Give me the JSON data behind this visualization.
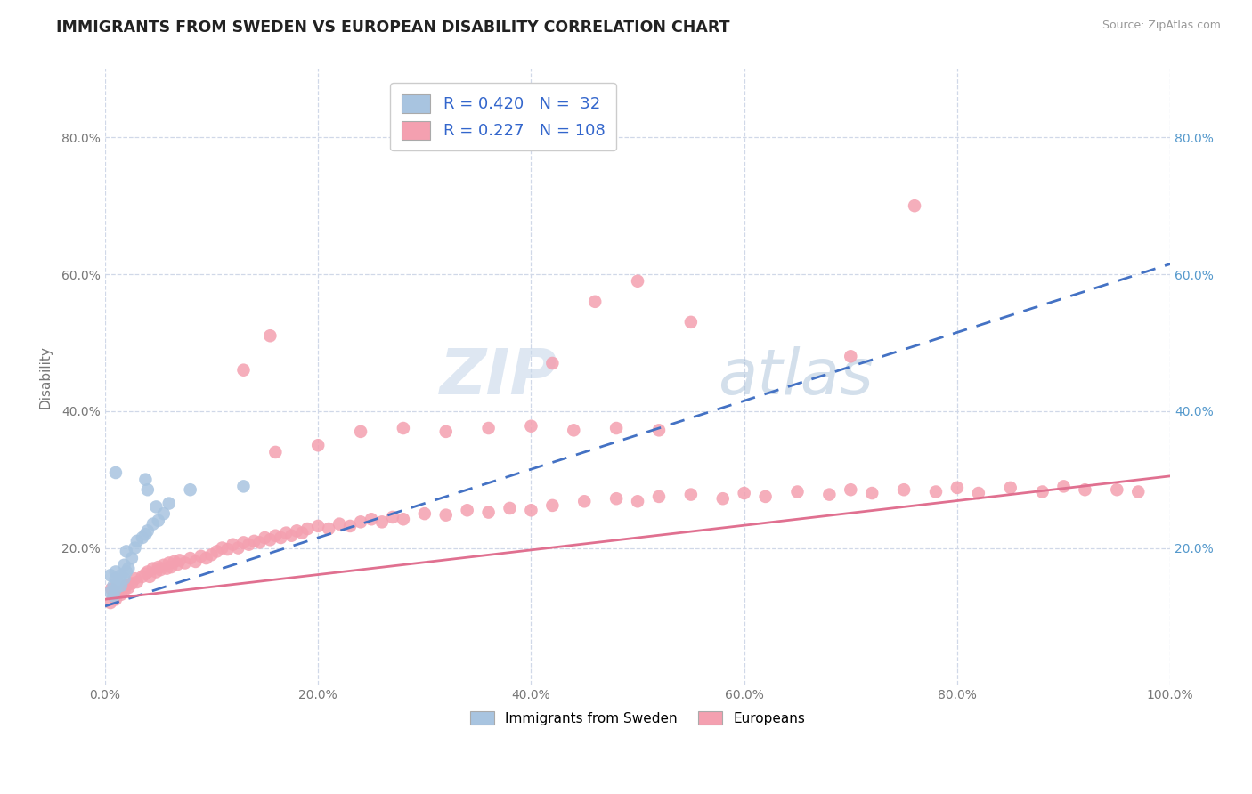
{
  "title": "IMMIGRANTS FROM SWEDEN VS EUROPEAN DISABILITY CORRELATION CHART",
  "source": "Source: ZipAtlas.com",
  "ylabel": "Disability",
  "xlim": [
    0.0,
    1.0
  ],
  "ylim": [
    0.0,
    0.9
  ],
  "sweden_R": 0.42,
  "sweden_N": 32,
  "europe_R": 0.227,
  "europe_N": 108,
  "sweden_color": "#a8c4e0",
  "europe_color": "#f4a0b0",
  "sweden_line_color": "#4472c4",
  "europe_line_color": "#e07090",
  "background_color": "#ffffff",
  "grid_color": "#d0d8e8",
  "watermark_zip": "ZIP",
  "watermark_atlas": "atlas",
  "sweden_line_x": [
    0.0,
    1.0
  ],
  "sweden_line_y": [
    0.115,
    0.615
  ],
  "europe_line_x": [
    0.0,
    1.0
  ],
  "europe_line_y": [
    0.125,
    0.305
  ],
  "sweden_points": [
    [
      0.005,
      0.135
    ],
    [
      0.008,
      0.145
    ],
    [
      0.01,
      0.14
    ],
    [
      0.012,
      0.15
    ],
    [
      0.005,
      0.16
    ],
    [
      0.008,
      0.13
    ],
    [
      0.01,
      0.155
    ],
    [
      0.012,
      0.148
    ],
    [
      0.015,
      0.145
    ],
    [
      0.018,
      0.155
    ],
    [
      0.01,
      0.165
    ],
    [
      0.015,
      0.16
    ],
    [
      0.02,
      0.165
    ],
    [
      0.018,
      0.175
    ],
    [
      0.022,
      0.17
    ],
    [
      0.025,
      0.185
    ],
    [
      0.02,
      0.195
    ],
    [
      0.028,
      0.2
    ],
    [
      0.03,
      0.21
    ],
    [
      0.035,
      0.215
    ],
    [
      0.038,
      0.22
    ],
    [
      0.04,
      0.225
    ],
    [
      0.045,
      0.235
    ],
    [
      0.05,
      0.24
    ],
    [
      0.055,
      0.25
    ],
    [
      0.048,
      0.26
    ],
    [
      0.038,
      0.3
    ],
    [
      0.06,
      0.265
    ],
    [
      0.01,
      0.31
    ],
    [
      0.04,
      0.285
    ],
    [
      0.08,
      0.285
    ],
    [
      0.13,
      0.29
    ]
  ],
  "europe_points": [
    [
      0.005,
      0.12
    ],
    [
      0.008,
      0.13
    ],
    [
      0.01,
      0.125
    ],
    [
      0.012,
      0.135
    ],
    [
      0.006,
      0.14
    ],
    [
      0.009,
      0.128
    ],
    [
      0.015,
      0.132
    ],
    [
      0.018,
      0.138
    ],
    [
      0.02,
      0.145
    ],
    [
      0.022,
      0.142
    ],
    [
      0.025,
      0.148
    ],
    [
      0.028,
      0.155
    ],
    [
      0.03,
      0.15
    ],
    [
      0.035,
      0.158
    ],
    [
      0.038,
      0.162
    ],
    [
      0.04,
      0.165
    ],
    [
      0.042,
      0.158
    ],
    [
      0.045,
      0.17
    ],
    [
      0.048,
      0.165
    ],
    [
      0.05,
      0.172
    ],
    [
      0.052,
      0.168
    ],
    [
      0.055,
      0.175
    ],
    [
      0.058,
      0.17
    ],
    [
      0.06,
      0.178
    ],
    [
      0.062,
      0.172
    ],
    [
      0.065,
      0.18
    ],
    [
      0.068,
      0.176
    ],
    [
      0.07,
      0.182
    ],
    [
      0.075,
      0.178
    ],
    [
      0.08,
      0.185
    ],
    [
      0.085,
      0.18
    ],
    [
      0.09,
      0.188
    ],
    [
      0.095,
      0.185
    ],
    [
      0.1,
      0.19
    ],
    [
      0.105,
      0.195
    ],
    [
      0.11,
      0.2
    ],
    [
      0.115,
      0.198
    ],
    [
      0.12,
      0.205
    ],
    [
      0.125,
      0.2
    ],
    [
      0.13,
      0.208
    ],
    [
      0.135,
      0.205
    ],
    [
      0.14,
      0.21
    ],
    [
      0.145,
      0.208
    ],
    [
      0.15,
      0.215
    ],
    [
      0.155,
      0.212
    ],
    [
      0.16,
      0.218
    ],
    [
      0.165,
      0.215
    ],
    [
      0.17,
      0.222
    ],
    [
      0.175,
      0.218
    ],
    [
      0.18,
      0.225
    ],
    [
      0.185,
      0.222
    ],
    [
      0.19,
      0.228
    ],
    [
      0.2,
      0.232
    ],
    [
      0.21,
      0.228
    ],
    [
      0.22,
      0.235
    ],
    [
      0.23,
      0.232
    ],
    [
      0.24,
      0.238
    ],
    [
      0.25,
      0.242
    ],
    [
      0.26,
      0.238
    ],
    [
      0.27,
      0.245
    ],
    [
      0.28,
      0.242
    ],
    [
      0.3,
      0.25
    ],
    [
      0.32,
      0.248
    ],
    [
      0.34,
      0.255
    ],
    [
      0.36,
      0.252
    ],
    [
      0.38,
      0.258
    ],
    [
      0.4,
      0.255
    ],
    [
      0.42,
      0.262
    ],
    [
      0.45,
      0.268
    ],
    [
      0.48,
      0.272
    ],
    [
      0.5,
      0.268
    ],
    [
      0.52,
      0.275
    ],
    [
      0.55,
      0.278
    ],
    [
      0.58,
      0.272
    ],
    [
      0.6,
      0.28
    ],
    [
      0.62,
      0.275
    ],
    [
      0.65,
      0.282
    ],
    [
      0.68,
      0.278
    ],
    [
      0.7,
      0.285
    ],
    [
      0.72,
      0.28
    ],
    [
      0.75,
      0.285
    ],
    [
      0.78,
      0.282
    ],
    [
      0.8,
      0.288
    ],
    [
      0.82,
      0.28
    ],
    [
      0.85,
      0.288
    ],
    [
      0.88,
      0.282
    ],
    [
      0.9,
      0.29
    ],
    [
      0.92,
      0.285
    ],
    [
      0.95,
      0.285
    ],
    [
      0.97,
      0.282
    ],
    [
      0.16,
      0.34
    ],
    [
      0.2,
      0.35
    ],
    [
      0.24,
      0.37
    ],
    [
      0.28,
      0.375
    ],
    [
      0.32,
      0.37
    ],
    [
      0.36,
      0.375
    ],
    [
      0.4,
      0.378
    ],
    [
      0.44,
      0.372
    ],
    [
      0.48,
      0.375
    ],
    [
      0.52,
      0.372
    ],
    [
      0.13,
      0.46
    ],
    [
      0.155,
      0.51
    ],
    [
      0.42,
      0.47
    ],
    [
      0.46,
      0.56
    ],
    [
      0.5,
      0.59
    ],
    [
      0.55,
      0.53
    ],
    [
      0.7,
      0.48
    ],
    [
      0.76,
      0.7
    ]
  ]
}
